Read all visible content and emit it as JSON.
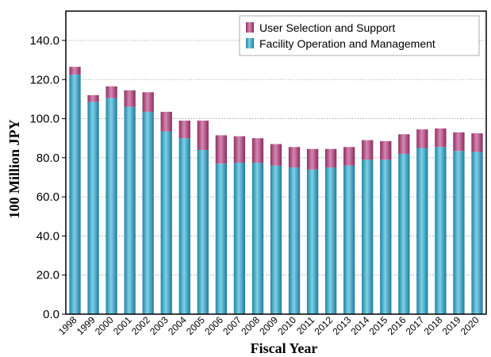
{
  "chart_data": {
    "type": "bar",
    "stacked": true,
    "categories": [
      "1998",
      "1999",
      "2000",
      "2001",
      "2002",
      "2003",
      "2004",
      "2005",
      "2006",
      "2007",
      "2008",
      "2009",
      "2010",
      "2011",
      "2012",
      "2013",
      "2014",
      "2015",
      "2016",
      "2017",
      "2018",
      "2019",
      "2020"
    ],
    "series": [
      {
        "name": "Facility Operation and Management",
        "color": "#2fa3c2",
        "values": [
          122.5,
          108.5,
          110.5,
          106.0,
          103.5,
          93.5,
          90.0,
          84.0,
          77.0,
          77.5,
          77.5,
          76.0,
          75.0,
          74.0,
          75.0,
          76.0,
          79.0,
          79.0,
          82.0,
          85.0,
          85.5,
          83.5,
          83.0
        ]
      },
      {
        "name": "User Selection and Support",
        "color": "#b2457c",
        "values": [
          4.0,
          3.5,
          6.0,
          8.5,
          10.0,
          10.0,
          9.0,
          15.0,
          14.5,
          13.5,
          12.5,
          11.0,
          10.5,
          10.5,
          9.5,
          9.5,
          10.0,
          9.5,
          10.0,
          9.5,
          9.5,
          9.5,
          9.5
        ]
      }
    ],
    "xlabel": "Fiscal Year",
    "ylabel": "100 Million JPY",
    "ylim": [
      0,
      155
    ],
    "yticks": [
      "0.0",
      "20.0",
      "40.0",
      "60.0",
      "80.0",
      "100.0",
      "120.0",
      "140.0"
    ],
    "grid": true,
    "legend_position": "top-right"
  }
}
